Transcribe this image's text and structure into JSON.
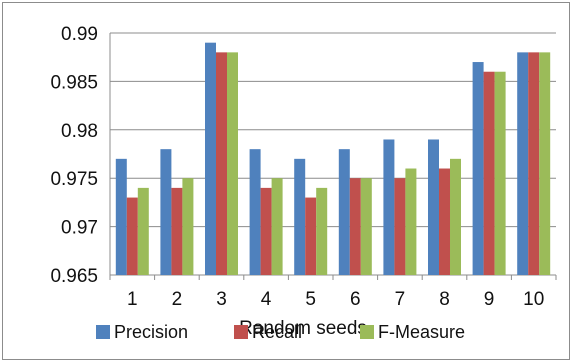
{
  "chart_data": {
    "type": "bar",
    "title": "",
    "xlabel": "Random seeds",
    "ylabel": "",
    "categories": [
      "1",
      "2",
      "3",
      "4",
      "5",
      "6",
      "7",
      "8",
      "9",
      "10"
    ],
    "ylim": [
      0.965,
      0.99
    ],
    "yticks": [
      "0.965",
      "0.97",
      "0.975",
      "0.98",
      "0.985",
      "0.99"
    ],
    "grid": true,
    "legend_position": "bottom",
    "series": [
      {
        "name": "Precision",
        "color": "#4f81bd",
        "values": [
          0.977,
          0.978,
          0.989,
          0.978,
          0.977,
          0.978,
          0.979,
          0.979,
          0.987,
          0.988
        ]
      },
      {
        "name": "Recall",
        "color": "#c0504d",
        "values": [
          0.973,
          0.974,
          0.988,
          0.974,
          0.973,
          0.975,
          0.975,
          0.976,
          0.986,
          0.988
        ]
      },
      {
        "name": "F-Measure",
        "color": "#9bbb59",
        "values": [
          0.974,
          0.975,
          0.988,
          0.975,
          0.974,
          0.975,
          0.976,
          0.977,
          0.986,
          0.988
        ]
      }
    ]
  }
}
